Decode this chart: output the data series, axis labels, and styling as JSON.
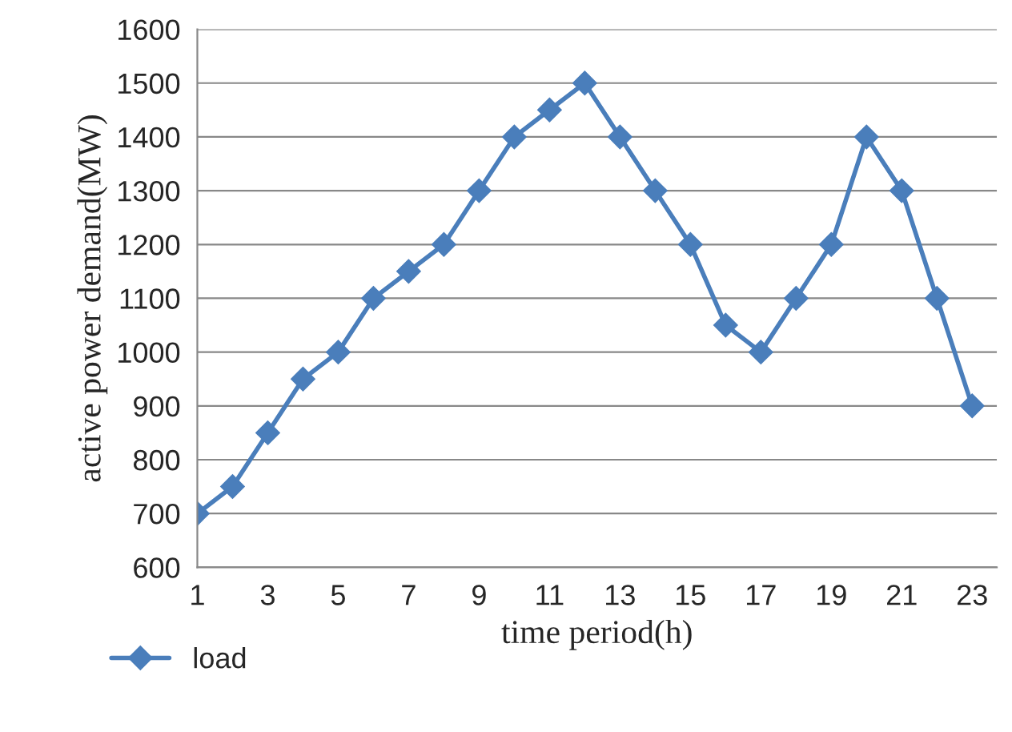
{
  "chart_data": {
    "type": "line",
    "xlabel": "time period(h)",
    "ylabel": "active power demand(MW)",
    "x": [
      1,
      2,
      3,
      4,
      5,
      6,
      7,
      8,
      9,
      10,
      11,
      12,
      13,
      14,
      15,
      16,
      17,
      18,
      19,
      20,
      21,
      22,
      23
    ],
    "series": [
      {
        "name": "load",
        "color": "#4a7ebb",
        "values": [
          700,
          750,
          850,
          950,
          1000,
          1100,
          1150,
          1200,
          1300,
          1400,
          1450,
          1500,
          1400,
          1300,
          1200,
          1050,
          1000,
          1100,
          1200,
          1400,
          1300,
          1100,
          900
        ]
      }
    ],
    "xlim": [
      1,
      23.7
    ],
    "xticks": [
      1,
      3,
      5,
      7,
      9,
      11,
      13,
      15,
      17,
      19,
      21,
      23
    ],
    "ylim": [
      600,
      1600
    ],
    "yticks": [
      600,
      700,
      800,
      900,
      1000,
      1100,
      1200,
      1300,
      1400,
      1500,
      1600
    ],
    "grid": "y",
    "legend": "bottom left",
    "marker": "diamond",
    "line_style": "solid"
  }
}
